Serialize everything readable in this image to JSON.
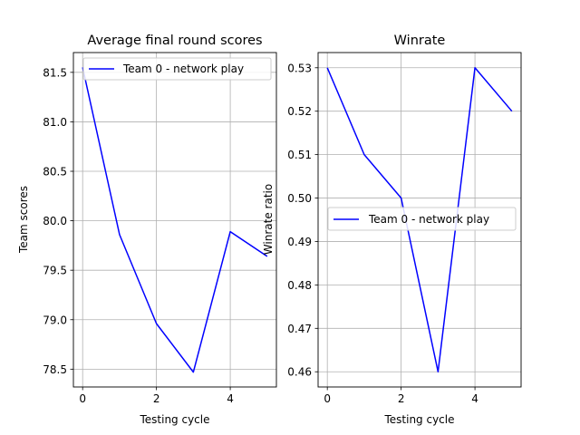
{
  "chart_data": [
    {
      "type": "line",
      "title": "Average final round scores",
      "xlabel": "Testing cycle",
      "ylabel": "Team scores",
      "x": [
        0,
        1,
        2,
        3,
        4,
        5
      ],
      "series": [
        {
          "name": "Team 0 - network play",
          "color": "#0000ff",
          "values": [
            81.55,
            79.86,
            78.96,
            78.47,
            79.89,
            79.64
          ]
        }
      ],
      "xlim": [
        -0.25,
        5.25
      ],
      "ylim": [
        78.32,
        81.7
      ],
      "xticks": [
        0,
        2,
        4
      ],
      "xtick_labels": [
        "0",
        "2",
        "4"
      ],
      "yticks": [
        78.5,
        79.0,
        79.5,
        80.0,
        80.5,
        81.0,
        81.5
      ],
      "ytick_labels": [
        "78.5",
        "79.0",
        "79.5",
        "80.0",
        "80.5",
        "81.0",
        "81.5"
      ],
      "grid": true,
      "legend": "upper right"
    },
    {
      "type": "line",
      "title": "Winrate",
      "xlabel": "Testing cycle",
      "ylabel": "Winrate ratio",
      "x": [
        0,
        1,
        2,
        3,
        4,
        5
      ],
      "series": [
        {
          "name": "Team 0 - network play",
          "color": "#0000ff",
          "values": [
            0.53,
            0.51,
            0.5,
            0.46,
            0.53,
            0.52
          ]
        }
      ],
      "xlim": [
        -0.25,
        5.25
      ],
      "ylim": [
        0.4565,
        0.5335
      ],
      "xticks": [
        0,
        2,
        4
      ],
      "xtick_labels": [
        "0",
        "2",
        "4"
      ],
      "yticks": [
        0.46,
        0.47,
        0.48,
        0.49,
        0.5,
        0.51,
        0.52,
        0.53
      ],
      "ytick_labels": [
        "0.46",
        "0.47",
        "0.48",
        "0.49",
        "0.50",
        "0.51",
        "0.52",
        "0.53"
      ],
      "grid": true,
      "legend": "center right"
    }
  ]
}
